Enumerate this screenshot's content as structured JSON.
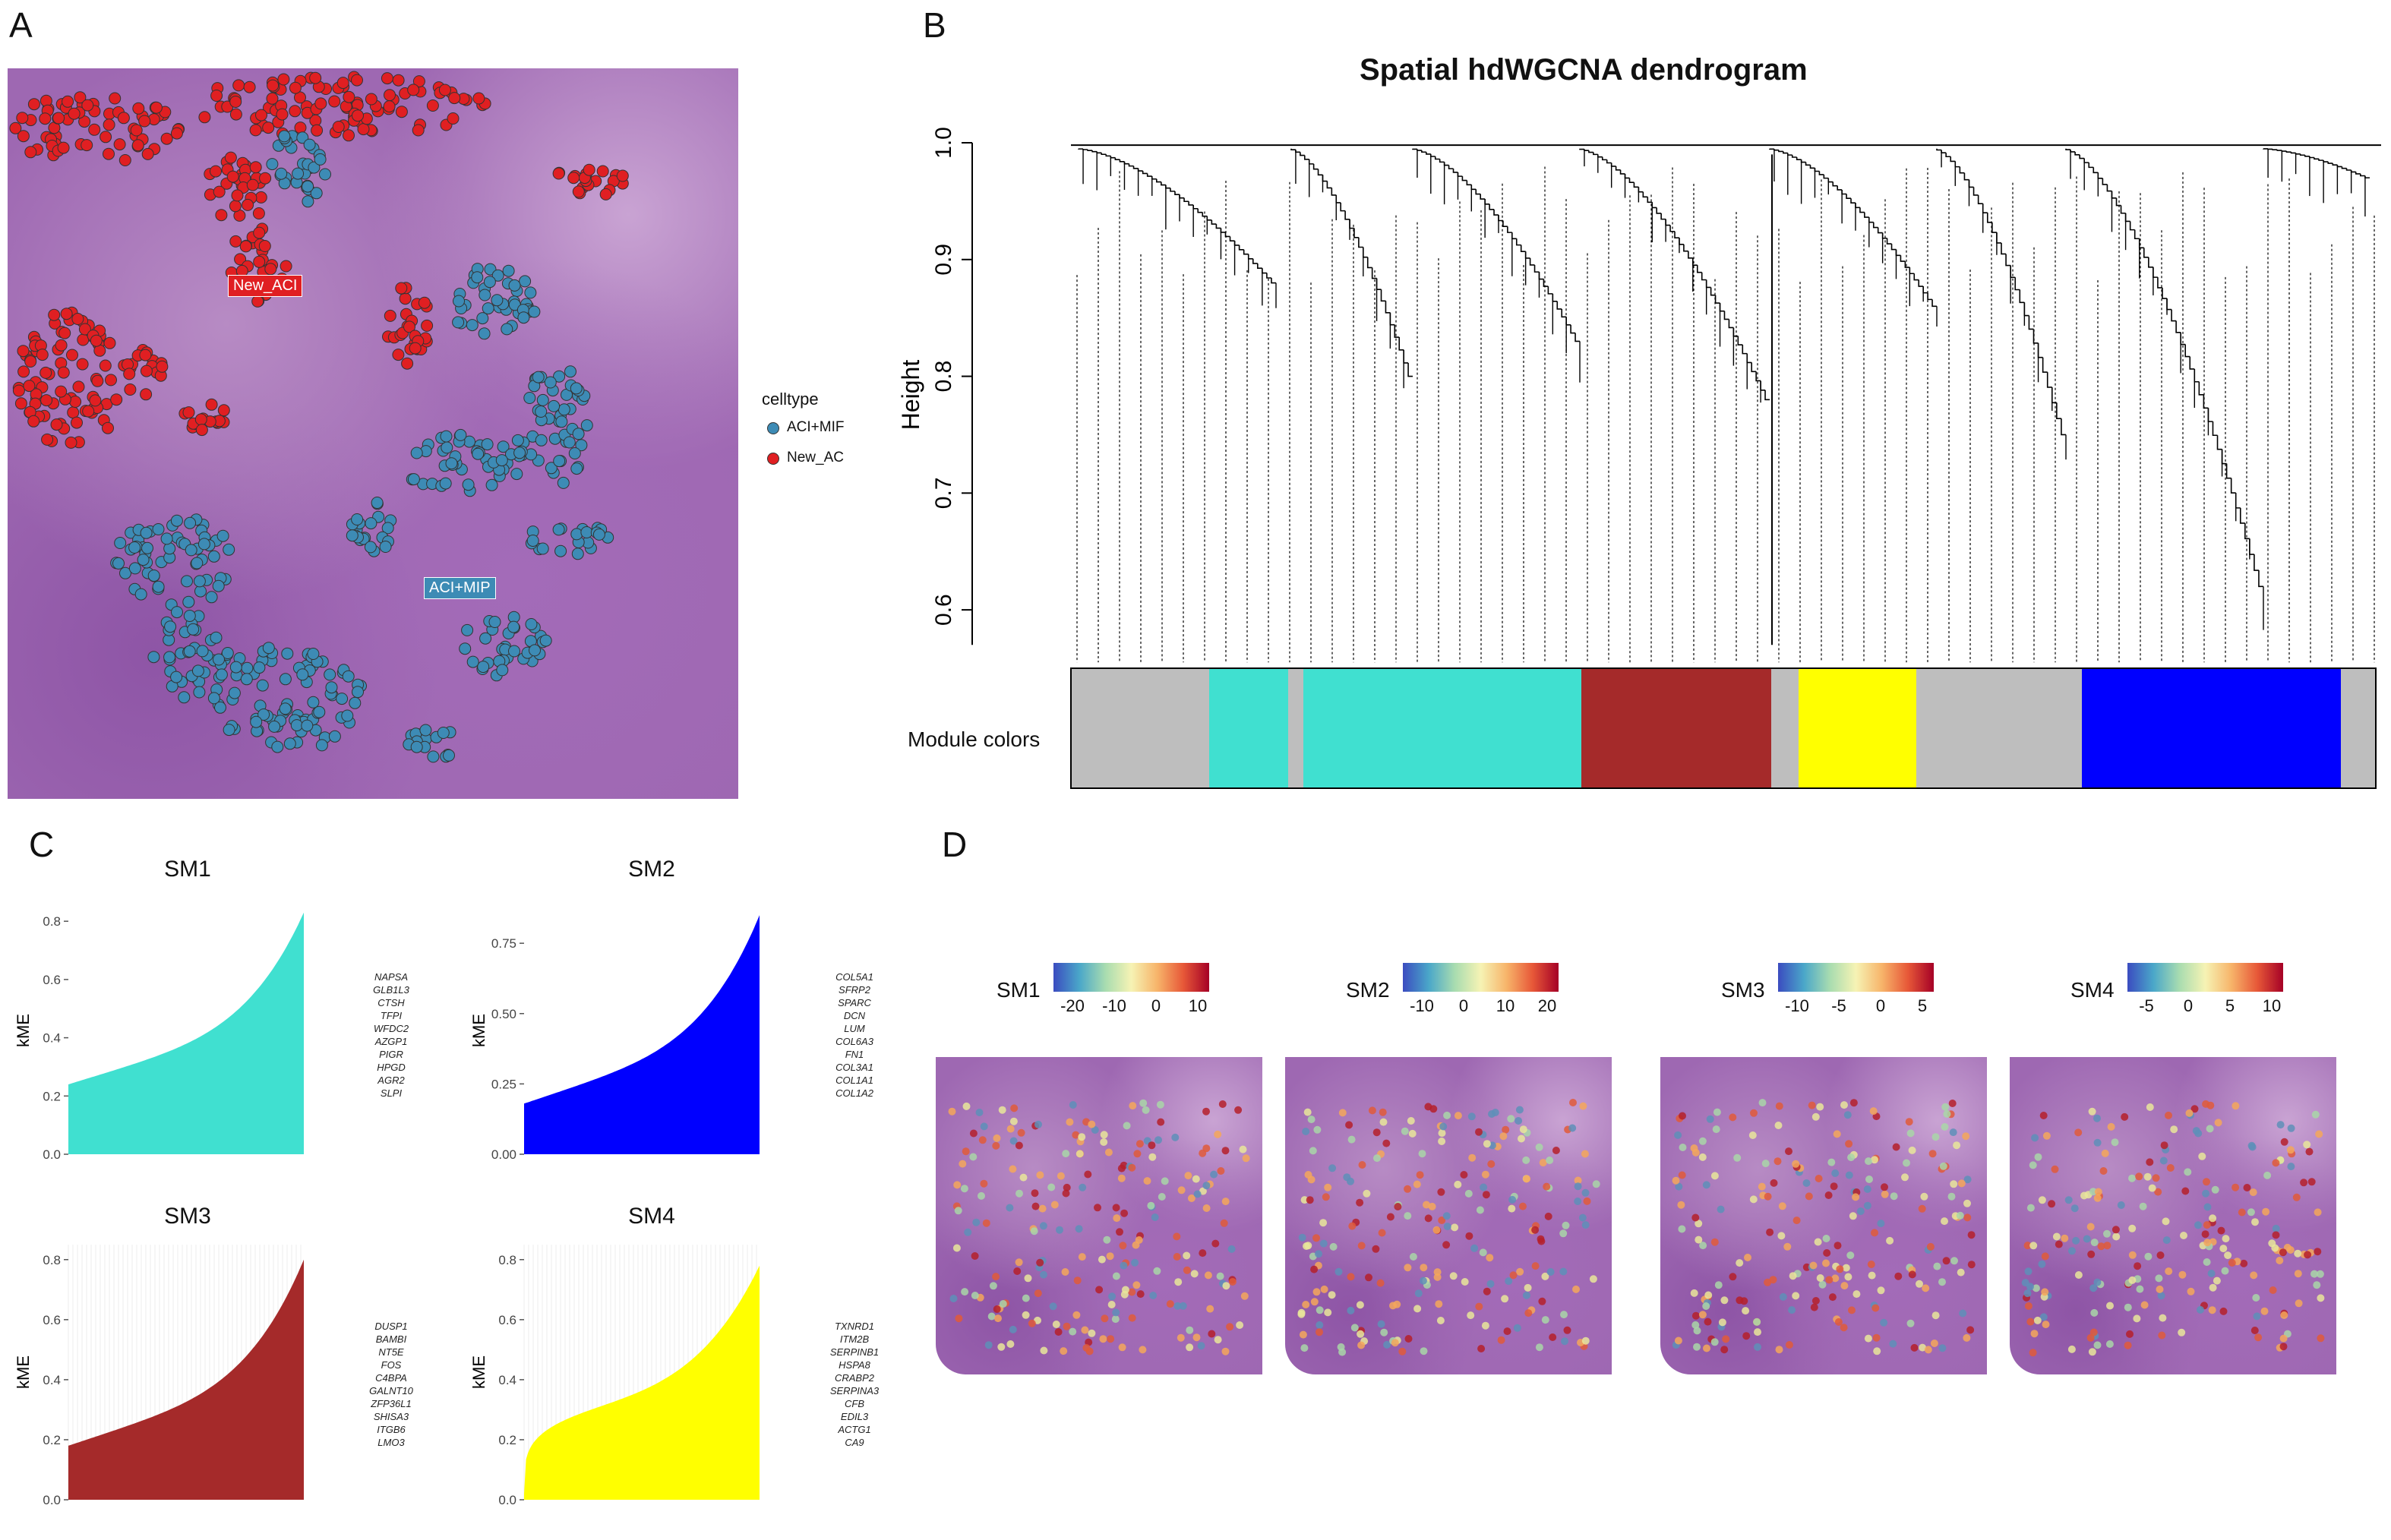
{
  "panels": {
    "a": "A",
    "b": "B",
    "c": "C",
    "d": "D"
  },
  "panel_a": {
    "label_new_aci": "New_ACI",
    "label_aci_mip": "ACI+MIP",
    "legend_title": "celltype",
    "legend_items": [
      "ACI+MIF",
      "New_AC"
    ],
    "colors": {
      "aci_mip": "#3d8bb5",
      "new_aci": "#e01f22"
    }
  },
  "chart_data": [
    {
      "type": "dendrogram",
      "title": "Spatial hdWGCNA dendrogram",
      "ylabel": "Height",
      "yticks": [
        "0.6",
        "0.7",
        "0.8",
        "0.9",
        "1.0"
      ],
      "ylim": [
        0.55,
        1.0
      ],
      "module_colors_label": "Module colors",
      "module_colors": [
        "#bebebe",
        "#40e0d0",
        "#bebebe",
        "#40e0d0",
        "#a52a2a",
        "#bebebe",
        "#ffff00",
        "#bebebe",
        "#0000ff",
        "#bebebe"
      ]
    },
    {
      "type": "area",
      "title": "SM1",
      "ylabel": "kME",
      "yticks": [
        "0.0",
        "0.2",
        "0.4",
        "0.6",
        "0.8"
      ],
      "ylim": [
        0,
        0.85
      ],
      "color": "#40e0d0",
      "kme_range": [
        0.24,
        0.83
      ],
      "genes": [
        "NAPSA",
        "GLB1L3",
        "CTSH",
        "TFPI",
        "WFDC2",
        "AZGP1",
        "PIGR",
        "HPGD",
        "AGR2",
        "SLPI"
      ]
    },
    {
      "type": "area",
      "title": "SM2",
      "ylabel": "kME",
      "yticks": [
        "0.00",
        "0.25",
        "0.50",
        "0.75"
      ],
      "ylim": [
        0,
        0.88
      ],
      "color": "#0000ff",
      "kme_range": [
        0.18,
        0.85
      ],
      "genes": [
        "COL5A1",
        "SFRP2",
        "SPARC",
        "DCN",
        "LUM",
        "COL6A3",
        "FN1",
        "COL3A1",
        "COL1A1",
        "COL1A2"
      ]
    },
    {
      "type": "area",
      "title": "SM3",
      "ylabel": "kME",
      "yticks": [
        "0.0",
        "0.2",
        "0.4",
        "0.6",
        "0.8"
      ],
      "ylim": [
        0,
        0.85
      ],
      "color": "#a52a2a",
      "kme_range": [
        0.18,
        0.8
      ],
      "genes": [
        "DUSP1",
        "BAMBI",
        "NT5E",
        "FOS",
        "C4BPA",
        "GALNT10",
        "ZFP36L1",
        "SHISA3",
        "ITGB6",
        "LMO3"
      ]
    },
    {
      "type": "area",
      "title": "SM4",
      "ylabel": "kME",
      "yticks": [
        "0.0",
        "0.2",
        "0.4",
        "0.6",
        "0.8"
      ],
      "ylim": [
        0,
        0.85
      ],
      "color": "#ffff00",
      "kme_range": [
        0.02,
        0.78
      ],
      "genes": [
        "TXNRD1",
        "ITM2B",
        "SERPINB1",
        "HSPA8",
        "CRABP2",
        "SERPINA3",
        "CFB",
        "EDIL3",
        "ACTG1",
        "CA9"
      ]
    }
  ],
  "panel_d": [
    {
      "name": "SM1",
      "ticks": [
        "-20",
        "-10",
        "0",
        "10"
      ]
    },
    {
      "name": "SM2",
      "ticks": [
        "-10",
        "0",
        "10",
        "20"
      ]
    },
    {
      "name": "SM3",
      "ticks": [
        "-10",
        "-5",
        "0",
        "5"
      ]
    },
    {
      "name": "SM4",
      "ticks": [
        "-5",
        "0",
        "5",
        "10"
      ]
    }
  ]
}
